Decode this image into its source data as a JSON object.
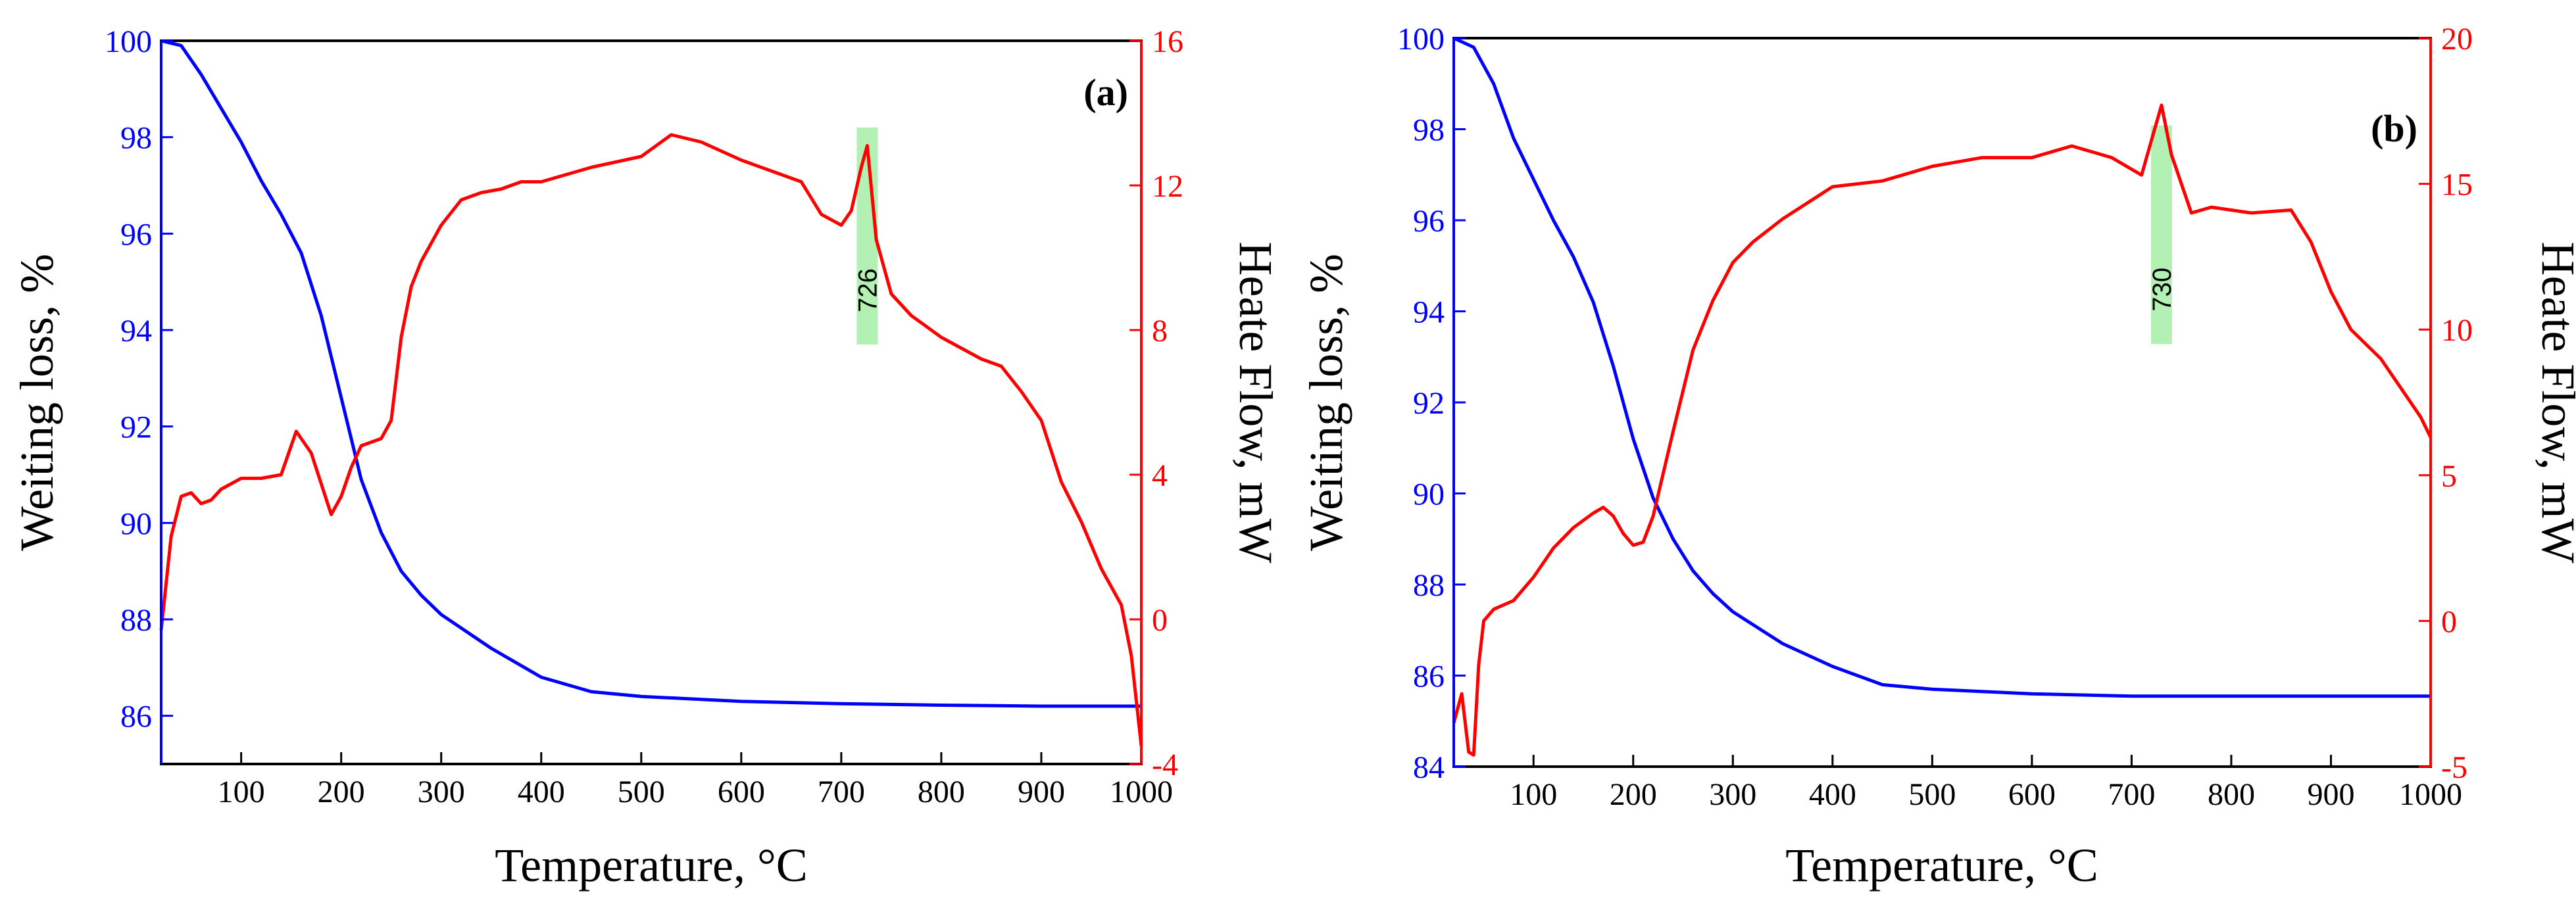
{
  "colors": {
    "left_axis": "#0000ff",
    "right_axis": "#ff0000",
    "tga_curve": "#0000ff",
    "dsc_curve": "#ff0000",
    "frame": "#000000",
    "peak_band": "#b3f0b3"
  },
  "chart_data": [
    {
      "type": "line",
      "panel_label": "(a)",
      "xlabel": "Temperature, °C",
      "ylabel_left": "Weiting loss, %",
      "ylabel_right": "Heate Flow, mW",
      "xlim": [
        20,
        1000
      ],
      "ylim_left": [
        85,
        100
      ],
      "ylim_right": [
        -4,
        16
      ],
      "x_ticks": [
        "100",
        "200",
        "300",
        "400",
        "500",
        "600",
        "700",
        "800",
        "900",
        "1000"
      ],
      "y_left_ticks": [
        "86",
        "88",
        "90",
        "92",
        "94",
        "96",
        "98",
        "100"
      ],
      "y_right_ticks": [
        "-4",
        "0",
        "4",
        "8",
        "12",
        "16"
      ],
      "peak": {
        "label": "726",
        "x": 726
      },
      "series": [
        {
          "name": "Weiting loss",
          "axis": "left",
          "x": [
            20,
            40,
            60,
            80,
            100,
            120,
            140,
            160,
            180,
            200,
            220,
            240,
            260,
            280,
            300,
            350,
            400,
            450,
            500,
            600,
            700,
            800,
            900,
            1000
          ],
          "y": [
            100,
            99.9,
            99.3,
            98.6,
            97.9,
            97.1,
            96.4,
            95.6,
            94.3,
            92.6,
            90.9,
            89.8,
            89.0,
            88.5,
            88.1,
            87.4,
            86.8,
            86.5,
            86.4,
            86.3,
            86.25,
            86.22,
            86.2,
            86.2
          ]
        },
        {
          "name": "Heat Flow",
          "axis": "right",
          "x": [
            20,
            30,
            40,
            50,
            60,
            70,
            80,
            100,
            120,
            140,
            155,
            170,
            190,
            200,
            210,
            220,
            240,
            250,
            260,
            270,
            280,
            300,
            320,
            340,
            360,
            380,
            400,
            450,
            500,
            530,
            560,
            600,
            640,
            660,
            680,
            700,
            710,
            720,
            726,
            735,
            750,
            770,
            800,
            840,
            860,
            880,
            900,
            920,
            940,
            960,
            980,
            990,
            1000
          ],
          "y": [
            -0.3,
            2.3,
            3.4,
            3.5,
            3.2,
            3.3,
            3.6,
            3.9,
            3.9,
            4.0,
            5.2,
            4.6,
            2.9,
            3.4,
            4.2,
            4.8,
            5.0,
            5.5,
            7.8,
            9.2,
            9.9,
            10.9,
            11.6,
            11.8,
            11.9,
            12.1,
            12.1,
            12.5,
            12.8,
            13.4,
            13.2,
            12.7,
            12.3,
            12.1,
            11.2,
            10.9,
            11.3,
            12.5,
            13.1,
            10.5,
            9.0,
            8.4,
            7.8,
            7.2,
            7.0,
            6.3,
            5.5,
            3.8,
            2.7,
            1.4,
            0.4,
            -1.0,
            -3.5
          ]
        }
      ]
    },
    {
      "type": "line",
      "panel_label": "(b)",
      "xlabel": "Temperature, °C",
      "ylabel_left": "Weiting loss, %",
      "ylabel_right": "Heate Flow, mW",
      "xlim": [
        20,
        1000
      ],
      "ylim_left": [
        84,
        100
      ],
      "ylim_right": [
        -5,
        20
      ],
      "x_ticks": [
        "100",
        "200",
        "300",
        "400",
        "500",
        "600",
        "700",
        "800",
        "900",
        "1000"
      ],
      "y_left_ticks": [
        "84",
        "86",
        "88",
        "90",
        "92",
        "94",
        "96",
        "98",
        "100"
      ],
      "y_right_ticks": [
        "-5",
        "0",
        "5",
        "10",
        "15",
        "20"
      ],
      "peak": {
        "label": "730",
        "x": 730
      },
      "series": [
        {
          "name": "Weiting loss",
          "axis": "left",
          "x": [
            20,
            40,
            60,
            80,
            100,
            120,
            140,
            160,
            180,
            200,
            220,
            240,
            260,
            280,
            300,
            350,
            400,
            450,
            500,
            600,
            700,
            800,
            900,
            1000
          ],
          "y": [
            100,
            99.8,
            99.0,
            97.8,
            96.9,
            96.0,
            95.2,
            94.2,
            92.8,
            91.2,
            89.9,
            89.0,
            88.3,
            87.8,
            87.4,
            86.7,
            86.2,
            85.8,
            85.7,
            85.6,
            85.55,
            85.55,
            85.55,
            85.55
          ]
        },
        {
          "name": "Heat Flow",
          "axis": "right",
          "x": [
            20,
            28,
            35,
            40,
            45,
            50,
            60,
            80,
            100,
            120,
            140,
            160,
            170,
            180,
            190,
            200,
            210,
            220,
            240,
            260,
            280,
            300,
            320,
            350,
            400,
            450,
            500,
            550,
            600,
            640,
            680,
            710,
            720,
            730,
            740,
            760,
            780,
            820,
            860,
            880,
            900,
            920,
            950,
            970,
            990,
            1000
          ],
          "y": [
            -3.5,
            -2.5,
            -4.5,
            -4.6,
            -1.5,
            0.0,
            0.4,
            0.7,
            1.5,
            2.5,
            3.2,
            3.7,
            3.9,
            3.6,
            3.0,
            2.6,
            2.7,
            3.6,
            6.5,
            9.3,
            11.0,
            12.3,
            13.0,
            13.8,
            14.9,
            15.1,
            15.6,
            15.9,
            15.9,
            16.3,
            15.9,
            15.3,
            16.5,
            17.7,
            16.0,
            14.0,
            14.2,
            14.0,
            14.1,
            13.0,
            11.3,
            10.0,
            9.0,
            8.0,
            7.0,
            6.3
          ]
        }
      ]
    }
  ]
}
